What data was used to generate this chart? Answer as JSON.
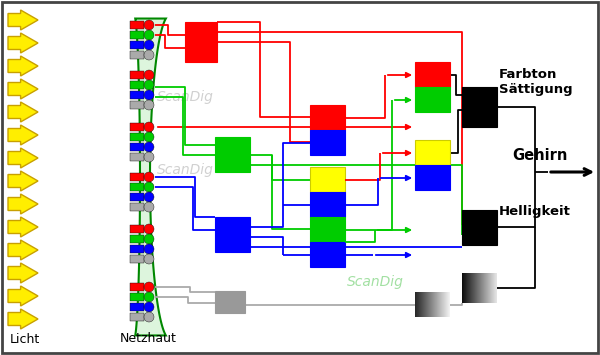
{
  "bg": "#ffffff",
  "red": "#ff0000",
  "green": "#00cc00",
  "blue": "#0000ff",
  "yellow": "#ffff00",
  "gray": "#aaaaaa",
  "black": "#000000",
  "gray_box": "#999999",
  "retina_fill": "#ddf5dd",
  "retina_edge": "#008800",
  "arrow_fc": "#ffee00",
  "arrow_ec": "#c8a000",
  "licht": "Licht",
  "netzhaut": "Netzhaut",
  "farbton": "Farbton",
  "saettigung": "Sättigung",
  "helligkeit": "Helligkeit",
  "gehirn": "Gehirn",
  "scanbig1": "ScanDig",
  "scanbig2": "ScanDig",
  "scanbig3": "ScanDig"
}
